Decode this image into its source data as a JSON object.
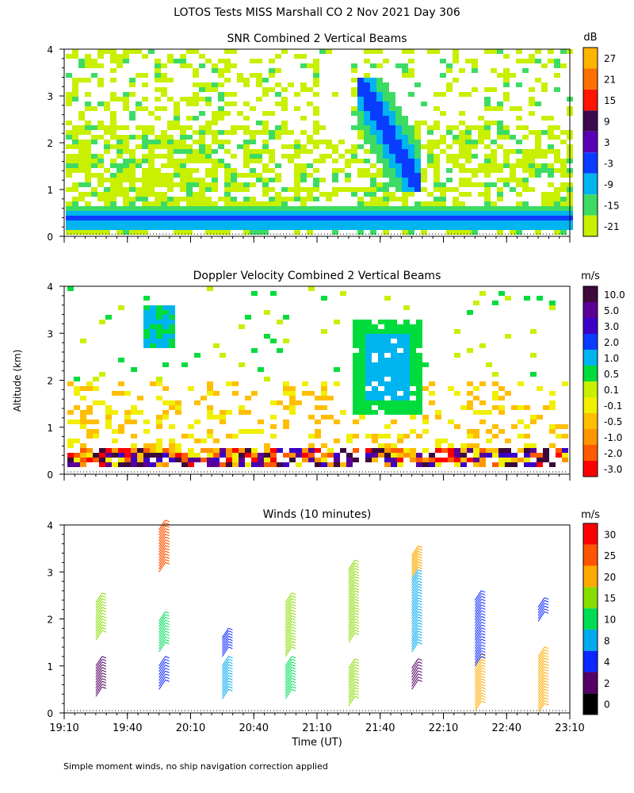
{
  "header": {
    "title": "LOTOS Tests MISS Marshall CO    2 Nov 2021 Day 306"
  },
  "footer": {
    "note": "Simple moment winds, no ship navigation correction applied"
  },
  "colors": {
    "snr_scale": [
      "#c8f000",
      "#3cdc64",
      "#00b4f0",
      "#0a3cff",
      "#5a00b4",
      "#3c0a50",
      "#ff1400",
      "#ff6e00",
      "#ffb400"
    ],
    "velocity_scale": [
      "#ff0000",
      "#ff5a00",
      "#ff9600",
      "#ffbe00",
      "#f0f000",
      "#c8f000",
      "#00dc3c",
      "#00b4f0",
      "#0a3cff",
      "#3c00c8",
      "#5a0096",
      "#3c0a3c"
    ],
    "wind_scale": [
      "#000000",
      "#550066",
      "#0a28ff",
      "#00aaee",
      "#00dd55",
      "#88dd00",
      "#ffaa00",
      "#ff5500",
      "#ff0000"
    ]
  },
  "chart_data": [
    {
      "type": "heatmap",
      "title": "SNR Combined 2 Vertical Beams",
      "ylabel": "",
      "xlabel": "",
      "units": "dB",
      "ylim": [
        0,
        4
      ],
      "yticks": [
        "0",
        "1",
        "2",
        "3",
        "4"
      ],
      "xlim": [
        "19:10",
        "23:10"
      ],
      "colorbar": {
        "labels": [
          "-21",
          "-15",
          "-9",
          "-3",
          "3",
          "9",
          "15",
          "21",
          "27"
        ],
        "range": [
          -24,
          30
        ]
      },
      "features": [
        {
          "desc_time_start": "19:10",
          "desc_time_end": "23:10",
          "alt_km": [
            0.25,
            0.6
          ],
          "snr_db": [
            -15,
            3
          ]
        },
        {
          "desc_time_start": "21:30",
          "desc_time_end": "21:55",
          "alt_km": [
            1.3,
            3.4
          ],
          "snr_db": [
            -9,
            -3
          ]
        }
      ]
    },
    {
      "type": "heatmap",
      "title": "Doppler Velocity Combined 2 Vertical Beams",
      "ylabel": "Altitude (km)",
      "xlabel": "",
      "units": "m/s",
      "ylim": [
        0,
        4
      ],
      "yticks": [
        "0",
        "1",
        "2",
        "3",
        "4"
      ],
      "xlim": [
        "19:10",
        "23:10"
      ],
      "colorbar": {
        "labels": [
          "-3.0",
          "-2.0",
          "-1.0",
          "-0.5",
          "-0.1",
          "0.1",
          "0.5",
          "1.0",
          "2.0",
          "3.0",
          "5.0",
          "10.0"
        ]
      },
      "features": [
        {
          "desc_time_start": "21:25",
          "desc_time_end": "22:00",
          "alt_km": [
            1.3,
            3.3
          ],
          "velocity_ms": 1.0
        },
        {
          "desc_time_start": "19:45",
          "desc_time_end": "20:00",
          "alt_km": [
            2.6,
            3.6
          ],
          "velocity_ms": 1.0
        }
      ]
    },
    {
      "type": "scatter",
      "title": "Winds (10 minutes)",
      "ylabel": "",
      "xlabel": "Time (UT)",
      "units": "m/s",
      "ylim": [
        0,
        4
      ],
      "yticks": [
        "0",
        "1",
        "2",
        "3",
        "4"
      ],
      "xticks": [
        "19:10",
        "19:40",
        "20:10",
        "20:40",
        "21:10",
        "21:40",
        "22:10",
        "22:40",
        "23:10"
      ],
      "colorbar": {
        "labels": [
          "0",
          "2",
          "4",
          "8",
          "10",
          "15",
          "20",
          "25",
          "30"
        ]
      },
      "profiles": [
        {
          "time": "19:25",
          "low": [
            0.35,
            1.0
          ],
          "high": [
            1.55,
            2.35
          ],
          "speed_low": 2,
          "speed_high": 15
        },
        {
          "time": "19:55",
          "low": [
            0.5,
            1.0
          ],
          "high": [
            1.3,
            1.95
          ],
          "speed_low": 5,
          "speed_high": 12
        },
        {
          "time": "19:55",
          "low": [
            3.0,
            3.9
          ],
          "high": [
            3.0,
            3.9
          ],
          "speed_low": 25,
          "speed_high": 25
        },
        {
          "time": "20:25",
          "low": [
            0.3,
            1.0
          ],
          "high": [
            1.2,
            1.6
          ],
          "speed_low": 8,
          "speed_high": 6
        },
        {
          "time": "20:55",
          "low": [
            0.3,
            1.0
          ],
          "high": [
            1.2,
            2.35
          ],
          "speed_low": 12,
          "speed_high": 15
        },
        {
          "time": "21:25",
          "low": [
            0.15,
            0.95
          ],
          "high": [
            1.5,
            3.05
          ],
          "speed_low": 18,
          "speed_high": 15
        },
        {
          "time": "21:55",
          "low": [
            0.5,
            0.95
          ],
          "high": [
            1.3,
            2.9
          ],
          "speed_low": 2,
          "speed_high": 9
        },
        {
          "time": "21:55",
          "low": [
            2.9,
            3.35
          ],
          "high": [
            2.9,
            3.35
          ],
          "speed_low": 22,
          "speed_high": 22
        },
        {
          "time": "22:25",
          "low": [
            0.05,
            1.05
          ],
          "high": [
            1.0,
            2.4
          ],
          "speed_low": 22,
          "speed_high": 6
        },
        {
          "time": "22:55",
          "low": [
            0.0,
            1.2
          ],
          "high": [
            1.95,
            2.25
          ],
          "speed_low": 22,
          "speed_high": 6
        }
      ]
    }
  ]
}
